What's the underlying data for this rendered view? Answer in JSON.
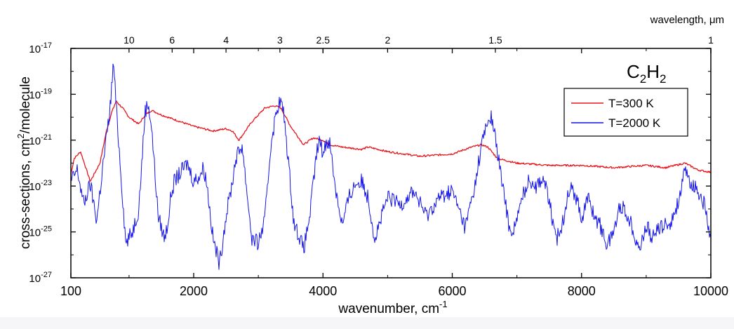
{
  "chart_data": {
    "type": "line",
    "title": "",
    "molecule_label": {
      "base": "C",
      "sub1": "2",
      "mid": "H",
      "sub2": "2"
    },
    "xlabel": {
      "text": "wavenumber, cm",
      "sup": "-1"
    },
    "ylabel": {
      "text1": "cross-sections, cm",
      "sup": "2",
      "text2": "/molecule"
    },
    "x2label": "wavelength, μm",
    "xlim": [
      100,
      10000
    ],
    "ylim": [
      1e-27,
      1e-17
    ],
    "yscale": "log",
    "x_ticks": [
      {
        "value": 100,
        "label": "100"
      },
      {
        "value": 2000,
        "label": "2000"
      },
      {
        "value": 4000,
        "label": "4000"
      },
      {
        "value": 6000,
        "label": "6000"
      },
      {
        "value": 8000,
        "label": "8000"
      },
      {
        "value": 10000,
        "label": "10000"
      }
    ],
    "y_ticks": [
      {
        "value": 1e-17,
        "base": "10",
        "exp": "-17"
      },
      {
        "value": 1e-19,
        "base": "10",
        "exp": "-19"
      },
      {
        "value": 1e-21,
        "base": "10",
        "exp": "-21"
      },
      {
        "value": 1e-23,
        "base": "10",
        "exp": "-23"
      },
      {
        "value": 1e-25,
        "base": "10",
        "exp": "-25"
      },
      {
        "value": 1e-27,
        "base": "10",
        "exp": "-27"
      }
    ],
    "top_ticks": [
      {
        "wavelength": 10,
        "label": "10"
      },
      {
        "wavelength": 6,
        "label": "6"
      },
      {
        "wavelength": 4,
        "label": "4"
      },
      {
        "wavelength": 3,
        "label": "3"
      },
      {
        "wavelength": 2.5,
        "label": "2.5"
      },
      {
        "wavelength": 2,
        "label": "2"
      },
      {
        "wavelength": 1.5,
        "label": "1.5"
      },
      {
        "wavelength": 1,
        "label": "1"
      }
    ],
    "legend": {
      "placement": "top-right"
    },
    "series": [
      {
        "name": "T=300 K",
        "color": "#e8141c",
        "x": [
          100,
          150,
          250,
          400,
          550,
          650,
          730,
          800,
          900,
          1000,
          1150,
          1250,
          1350,
          1500,
          1700,
          2000,
          2300,
          2500,
          2600,
          2700,
          2900,
          3100,
          3250,
          3350,
          3500,
          3700,
          3850,
          4000,
          4100,
          4300,
          4600,
          4700,
          5000,
          5500,
          6000,
          6300,
          6450,
          6550,
          6700,
          7000,
          7500,
          8000,
          8500,
          9000,
          9300,
          9600,
          9800,
          10000
        ],
        "y": [
          -22.5,
          -21.8,
          -21.5,
          -22.8,
          -22.0,
          -20.6,
          -19.8,
          -19.3,
          -19.6,
          -20.0,
          -20.3,
          -19.9,
          -19.7,
          -19.9,
          -20.1,
          -20.4,
          -20.6,
          -20.5,
          -20.6,
          -21.0,
          -20.2,
          -19.6,
          -19.5,
          -19.6,
          -20.4,
          -21.2,
          -20.9,
          -21.0,
          -21.2,
          -21.3,
          -21.4,
          -21.3,
          -21.5,
          -21.7,
          -21.6,
          -21.3,
          -21.2,
          -21.3,
          -21.8,
          -22.0,
          -22.1,
          -22.1,
          -22.2,
          -22.1,
          -22.2,
          -22.0,
          -22.3,
          -22.4
        ]
      },
      {
        "name": "T=2000 K",
        "color": "#1414e8",
        "x": [
          100,
          200,
          300,
          400,
          500,
          600,
          700,
          730,
          760,
          800,
          850,
          950,
          1050,
          1150,
          1250,
          1300,
          1350,
          1450,
          1550,
          1600,
          1650,
          1700,
          1800,
          1900,
          2000,
          2100,
          2150,
          2200,
          2300,
          2400,
          2500,
          2600,
          2650,
          2700,
          2750,
          2800,
          2900,
          3000,
          3100,
          3200,
          3300,
          3350,
          3400,
          3500,
          3550,
          3650,
          3700,
          3800,
          3900,
          3950,
          4000,
          4050,
          4100,
          4200,
          4300,
          4400,
          4500,
          4600,
          4700,
          4800,
          5000,
          5200,
          5400,
          5600,
          5800,
          6000,
          6200,
          6350,
          6450,
          6550,
          6600,
          6650,
          6750,
          6900,
          7000,
          7100,
          7200,
          7300,
          7400,
          7500,
          7600,
          7700,
          7800,
          7900,
          8000,
          8100,
          8200,
          8300,
          8400,
          8500,
          8600,
          8700,
          8800,
          8900,
          9000,
          9100,
          9200,
          9300,
          9400,
          9500,
          9600,
          9700,
          9800,
          9900,
          10000
        ],
        "y": [
          -22.8,
          -22.3,
          -23.8,
          -22.9,
          -24.5,
          -22.0,
          -19.8,
          -18.7,
          -17.6,
          -19.5,
          -21.5,
          -25.5,
          -25.0,
          -24.0,
          -19.7,
          -19.4,
          -20.5,
          -24.3,
          -25.3,
          -24.6,
          -23.4,
          -22.8,
          -22.4,
          -22.0,
          -22.8,
          -22.5,
          -22.2,
          -22.8,
          -25.3,
          -26.4,
          -24.3,
          -22.8,
          -21.8,
          -21.5,
          -21.2,
          -22.6,
          -25.3,
          -25.5,
          -24.5,
          -21.0,
          -19.5,
          -19.3,
          -20.0,
          -23.0,
          -24.6,
          -25.3,
          -25.8,
          -24.2,
          -21.6,
          -21.0,
          -21.6,
          -21.1,
          -21.0,
          -23.2,
          -24.7,
          -23.5,
          -22.9,
          -22.8,
          -23.5,
          -25.3,
          -23.5,
          -23.8,
          -23.2,
          -24.3,
          -23.5,
          -23.2,
          -24.8,
          -23.0,
          -21.2,
          -20.2,
          -20.0,
          -20.6,
          -22.5,
          -25.1,
          -24.5,
          -23.3,
          -22.7,
          -23.0,
          -22.6,
          -23.6,
          -25.4,
          -24.7,
          -23.1,
          -23.3,
          -24.4,
          -23.5,
          -24.3,
          -24.8,
          -25.6,
          -24.9,
          -23.8,
          -24.2,
          -24.9,
          -25.8,
          -24.7,
          -25.3,
          -24.8,
          -24.7,
          -24.5,
          -23.6,
          -22.4,
          -22.9,
          -23.2,
          -23.8,
          -25.5
        ]
      }
    ]
  }
}
